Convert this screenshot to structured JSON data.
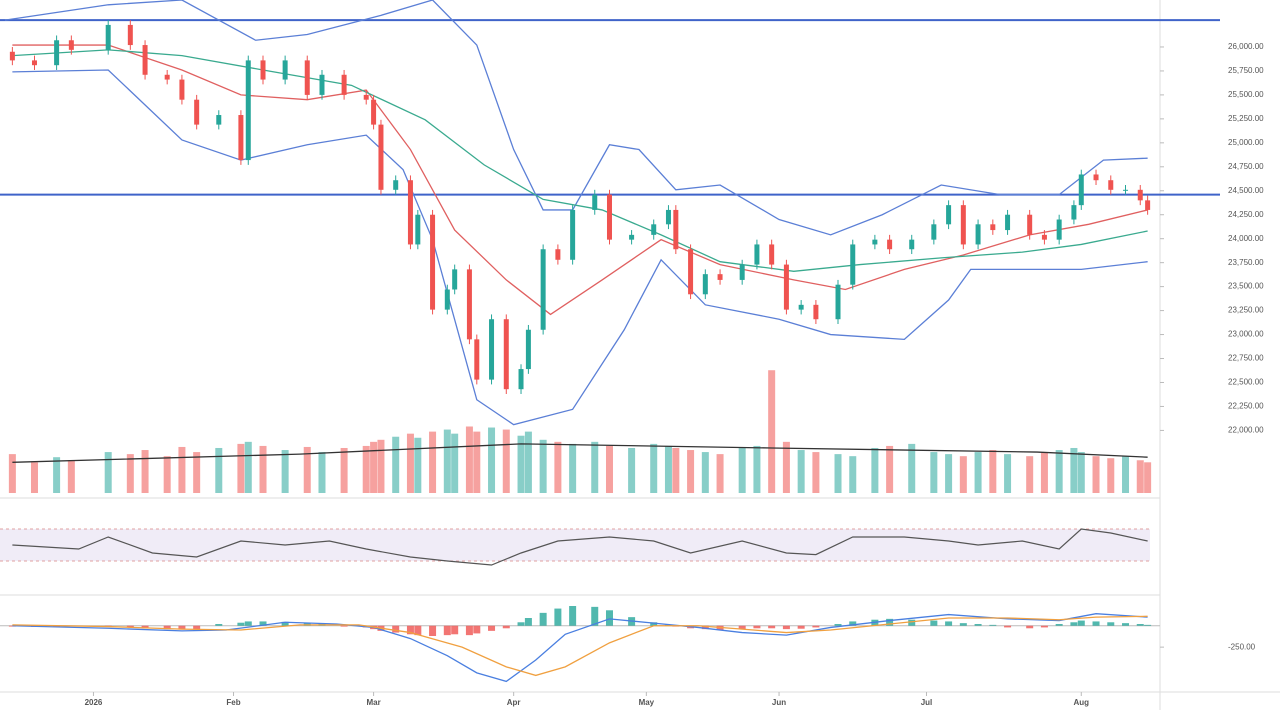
{
  "chart_data": {
    "type": "candlestick",
    "up_color": "#26a69a",
    "down_color": "#ef5350",
    "x": [
      1,
      4,
      7,
      9,
      14,
      17,
      19,
      22,
      24,
      26,
      29,
      32,
      33,
      35,
      38,
      41,
      43,
      46,
      49,
      50,
      51,
      53,
      55,
      56,
      58,
      60,
      61,
      63,
      64,
      66,
      68,
      70,
      71,
      73,
      75,
      77,
      80,
      82,
      85,
      88,
      90,
      91,
      93,
      95,
      97,
      100,
      102,
      104,
      106,
      108,
      110,
      113,
      115,
      118,
      120,
      123,
      126,
      128,
      130,
      132,
      134,
      136,
      139,
      141,
      143,
      145,
      146,
      148,
      150,
      152,
      154,
      155
    ],
    "ohlc": [
      [
        25950,
        26000,
        25810,
        25860
      ],
      [
        25860,
        25910,
        25760,
        25810
      ],
      [
        25810,
        26120,
        25760,
        26070
      ],
      [
        26070,
        26120,
        25920,
        25970
      ],
      [
        25970,
        26280,
        25920,
        26230
      ],
      [
        26230,
        26280,
        25970,
        26020
      ],
      [
        26020,
        26070,
        25660,
        25710
      ],
      [
        25710,
        25760,
        25610,
        25660
      ],
      [
        25660,
        25710,
        25400,
        25450
      ],
      [
        25450,
        25500,
        25140,
        25190
      ],
      [
        25190,
        25340,
        25140,
        25290
      ],
      [
        25290,
        25340,
        24770,
        24820
      ],
      [
        24820,
        25910,
        24770,
        25860
      ],
      [
        25860,
        25910,
        25610,
        25660
      ],
      [
        25660,
        25910,
        25610,
        25860
      ],
      [
        25860,
        25910,
        25450,
        25500
      ],
      [
        25500,
        25760,
        25450,
        25710
      ],
      [
        25710,
        25760,
        25450,
        25500
      ],
      [
        25500,
        25550,
        25400,
        25450
      ],
      [
        25450,
        25500,
        25140,
        25190
      ],
      [
        25190,
        25240,
        24460,
        24510
      ],
      [
        24510,
        24660,
        24460,
        24610
      ],
      [
        24610,
        24660,
        23890,
        23940
      ],
      [
        23940,
        24300,
        23890,
        24250
      ],
      [
        24250,
        24300,
        23210,
        23260
      ],
      [
        23260,
        23520,
        23210,
        23470
      ],
      [
        23470,
        23730,
        23420,
        23680
      ],
      [
        23680,
        23730,
        22900,
        22950
      ],
      [
        22950,
        23000,
        22480,
        22530
      ],
      [
        22530,
        23210,
        22480,
        23160
      ],
      [
        23160,
        23210,
        22380,
        22430
      ],
      [
        22430,
        22690,
        22380,
        22640
      ],
      [
        22640,
        23100,
        22590,
        23050
      ],
      [
        23050,
        23940,
        23000,
        23890
      ],
      [
        23890,
        23940,
        23730,
        23780
      ],
      [
        23780,
        24350,
        23730,
        24300
      ],
      [
        24300,
        24510,
        24250,
        24460
      ],
      [
        24460,
        24510,
        23940,
        23990
      ],
      [
        23990,
        24090,
        23940,
        24040
      ],
      [
        24040,
        24200,
        23990,
        24150
      ],
      [
        24150,
        24350,
        24100,
        24300
      ],
      [
        24300,
        24350,
        23840,
        23890
      ],
      [
        23890,
        23940,
        23370,
        23420
      ],
      [
        23420,
        23680,
        23370,
        23630
      ],
      [
        23630,
        23680,
        23520,
        23570
      ],
      [
        23570,
        23780,
        23520,
        23730
      ],
      [
        23730,
        23990,
        23680,
        23940
      ],
      [
        23940,
        23990,
        23680,
        23730
      ],
      [
        23730,
        23780,
        23210,
        23260
      ],
      [
        23260,
        23360,
        23210,
        23310
      ],
      [
        23310,
        23360,
        23110,
        23160
      ],
      [
        23160,
        23570,
        23110,
        23520
      ],
      [
        23520,
        23990,
        23470,
        23940
      ],
      [
        23940,
        24040,
        23890,
        23990
      ],
      [
        23990,
        24040,
        23840,
        23890
      ],
      [
        23890,
        24040,
        23840,
        23990
      ],
      [
        23990,
        24200,
        23940,
        24150
      ],
      [
        24150,
        24400,
        24100,
        24350
      ],
      [
        24350,
        24400,
        23890,
        23940
      ],
      [
        23940,
        24200,
        23890,
        24150
      ],
      [
        24150,
        24200,
        24040,
        24090
      ],
      [
        24090,
        24300,
        24040,
        24250
      ],
      [
        24250,
        24300,
        23990,
        24040
      ],
      [
        24040,
        24090,
        23940,
        23990
      ],
      [
        23990,
        24250,
        23940,
        24200
      ],
      [
        24200,
        24400,
        24150,
        24350
      ],
      [
        24350,
        24720,
        24300,
        24670
      ],
      [
        24670,
        24720,
        24560,
        24610
      ],
      [
        24610,
        24660,
        24460,
        24510
      ],
      [
        24510,
        24560,
        24460,
        24510
      ],
      [
        24510,
        24560,
        24350,
        24400
      ],
      [
        24400,
        24450,
        24250,
        24300
      ]
    ],
    "xlim": [
      0,
      156
    ],
    "xticks": [
      {
        "value": 12,
        "label": "2026"
      },
      {
        "value": 31,
        "label": "Feb"
      },
      {
        "value": 50,
        "label": "Mar"
      },
      {
        "value": 69,
        "label": "Apr"
      },
      {
        "value": 87,
        "label": "May"
      },
      {
        "value": 105,
        "label": "Jun"
      },
      {
        "value": 125,
        "label": "Jul"
      },
      {
        "value": 146,
        "label": "Aug"
      }
    ],
    "ylim": [
      21900,
      26490
    ],
    "yticks": [
      {
        "value": 22000,
        "label": "22,000.00"
      },
      {
        "value": 22250,
        "label": "22,250.00"
      },
      {
        "value": 22500,
        "label": "22,500.00"
      },
      {
        "value": 22750,
        "label": "22,750.00"
      },
      {
        "value": 23000,
        "label": "23,000.00"
      },
      {
        "value": 23250,
        "label": "23,250.00"
      },
      {
        "value": 23500,
        "label": "23,500.00"
      },
      {
        "value": 23750,
        "label": "23,750.00"
      },
      {
        "value": 24000,
        "label": "24,000.00"
      },
      {
        "value": 24250,
        "label": "24,250.00"
      },
      {
        "value": 24500,
        "label": "24,500.00"
      },
      {
        "value": 24750,
        "label": "24,750.00"
      },
      {
        "value": 25000,
        "label": "25,000.00"
      },
      {
        "value": 25250,
        "label": "25,250.00"
      },
      {
        "value": 25500,
        "label": "25,500.00"
      },
      {
        "value": 25750,
        "label": "25,750.00"
      },
      {
        "value": 26000,
        "label": "26,000.00"
      }
    ],
    "hlines": [
      26280,
      24460
    ],
    "hline_color": "#3f63c9",
    "overlays": [
      {
        "color": "#5b7fd6",
        "x": [
          0,
          14,
          24,
          34,
          41,
          51,
          58,
          64,
          69,
          73,
          77,
          82,
          86,
          91,
          97,
          105,
          112,
          119,
          127,
          135,
          143,
          149,
          155
        ],
        "values": [
          26280,
          26440,
          26490,
          26070,
          26130,
          26330,
          26490,
          26020,
          24930,
          24300,
          24300,
          24980,
          24930,
          24510,
          24560,
          24200,
          24040,
          24250,
          24560,
          24460,
          24460,
          24820,
          24840
        ]
      },
      {
        "color": "#5b7fd6",
        "x": [
          1,
          14,
          24,
          32,
          41,
          49,
          54,
          58,
          64,
          69,
          77,
          84,
          89,
          95,
          105,
          112,
          122,
          128,
          131,
          138,
          146,
          155
        ],
        "values": [
          25740,
          25760,
          25030,
          24820,
          24980,
          25080,
          24720,
          23990,
          22320,
          22060,
          22220,
          23050,
          23780,
          23310,
          23160,
          23000,
          22950,
          23360,
          23680,
          23680,
          23680,
          23760
        ]
      },
      {
        "color": "#e06060",
        "x": [
          1,
          14,
          24,
          32,
          41,
          49,
          55,
          61,
          68,
          74,
          81,
          89,
          97,
          107,
          114,
          122,
          130,
          139,
          147,
          155
        ],
        "values": [
          26020,
          26020,
          25760,
          25500,
          25450,
          25550,
          24930,
          24090,
          23570,
          23210,
          23570,
          23990,
          23730,
          23570,
          23470,
          23680,
          23830,
          24040,
          24150,
          24300
        ]
      },
      {
        "color": "#3aaa8f",
        "x": [
          1,
          14,
          24,
          35,
          47,
          57,
          65,
          73,
          81,
          89,
          97,
          107,
          116,
          127,
          138,
          146,
          155
        ],
        "values": [
          25910,
          25970,
          25910,
          25760,
          25600,
          25240,
          24770,
          24410,
          24300,
          24040,
          23760,
          23660,
          23730,
          23800,
          23860,
          23940,
          24080
        ]
      }
    ],
    "volume": {
      "ylim": [
        0,
        130
      ],
      "values": [
        38,
        30,
        35,
        32,
        40,
        38,
        42,
        36,
        45,
        40,
        44,
        48,
        50,
        46,
        42,
        45,
        40,
        44,
        46,
        50,
        52,
        55,
        58,
        54,
        60,
        62,
        58,
        65,
        60,
        64,
        62,
        56,
        60,
        52,
        50,
        48,
        50,
        46,
        44,
        48,
        46,
        44,
        42,
        40,
        38,
        44,
        46,
        120,
        50,
        42,
        40,
        38,
        36,
        44,
        46,
        48,
        40,
        38,
        36,
        40,
        42,
        38,
        36,
        40,
        42,
        44,
        40,
        36,
        34,
        36,
        32,
        30
      ],
      "ma": {
        "color": "#333333",
        "x": [
          1,
          40,
          70,
          104,
          140,
          155
        ],
        "values": [
          30,
          38,
          48,
          44,
          40,
          35
        ]
      }
    },
    "rsi": {
      "ylim": [
        0,
        100
      ],
      "levels": [
        70,
        30
      ],
      "color": "#555555",
      "x": [
        1,
        10,
        14,
        20,
        26,
        32,
        38,
        44,
        49,
        55,
        60,
        66,
        70,
        75,
        82,
        88,
        93,
        100,
        106,
        110,
        115,
        122,
        128,
        132,
        138,
        143,
        146,
        150,
        155
      ],
      "values": [
        50,
        45,
        60,
        40,
        35,
        55,
        50,
        55,
        45,
        35,
        30,
        25,
        40,
        55,
        60,
        55,
        40,
        55,
        40,
        38,
        60,
        60,
        55,
        50,
        55,
        45,
        70,
        65,
        55
      ]
    },
    "macd": {
      "ylim": [
        -750,
        300
      ],
      "yticks": [
        {
          "value": -250,
          "label": "-250.00"
        }
      ],
      "histogram": [
        -10,
        -15,
        -10,
        -5,
        -15,
        -20,
        -30,
        -40,
        -45,
        -40,
        20,
        35,
        50,
        50,
        45,
        30,
        20,
        -10,
        -20,
        -40,
        -60,
        -80,
        -100,
        -110,
        -120,
        -110,
        -100,
        -110,
        -90,
        -60,
        -30,
        40,
        90,
        150,
        200,
        230,
        220,
        180,
        100,
        40,
        10,
        -10,
        -30,
        -40,
        -50,
        -40,
        -30,
        -30,
        -40,
        -35,
        -20,
        20,
        50,
        70,
        80,
        70,
        60,
        50,
        30,
        20,
        10,
        -20,
        -30,
        -20,
        20,
        40,
        60,
        50,
        40,
        30,
        20,
        10
      ],
      "line": {
        "color": "#4a7fe0",
        "x": [
          1,
          14,
          24,
          30,
          38,
          45,
          50,
          55,
          60,
          64,
          68,
          72,
          76,
          82,
          88,
          94,
          100,
          106,
          112,
          120,
          128,
          136,
          143,
          148,
          155
        ],
        "values": [
          0,
          -30,
          -60,
          -50,
          40,
          20,
          -20,
          -150,
          -350,
          -550,
          -650,
          -400,
          -100,
          80,
          30,
          -20,
          -80,
          -110,
          -20,
          60,
          130,
          80,
          60,
          140,
          100
        ]
      },
      "signal": {
        "color": "#f0a040",
        "x": [
          1,
          14,
          24,
          32,
          40,
          48,
          55,
          62,
          68,
          72,
          76,
          82,
          88,
          94,
          100,
          106,
          112,
          120,
          128,
          136,
          143,
          148,
          155
        ],
        "values": [
          10,
          -10,
          -40,
          -50,
          10,
          10,
          -80,
          -250,
          -480,
          -580,
          -480,
          -200,
          0,
          0,
          -40,
          -80,
          -50,
          20,
          90,
          90,
          70,
          100,
          110
        ]
      }
    }
  }
}
